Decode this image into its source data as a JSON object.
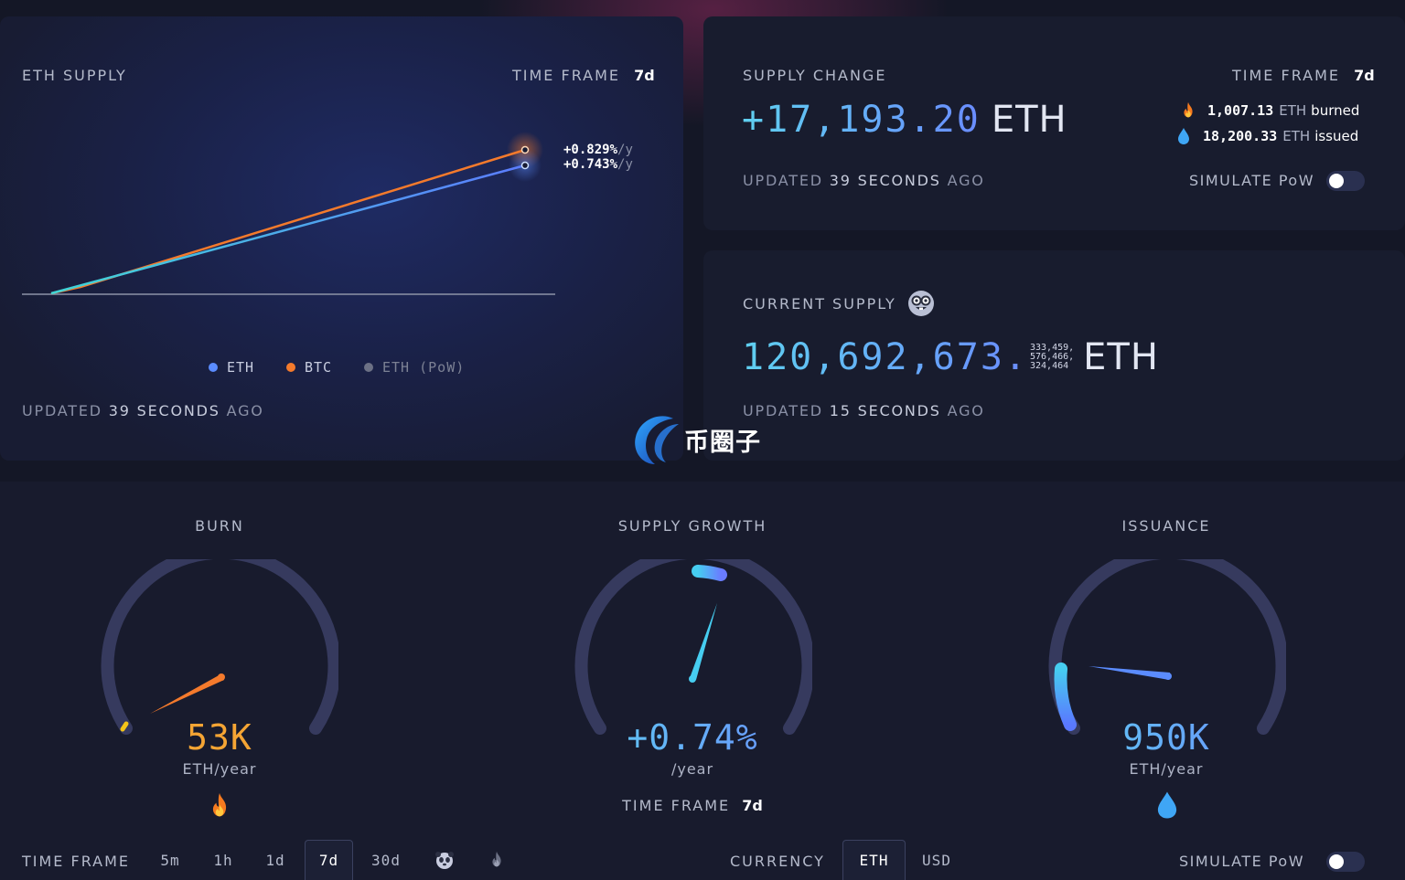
{
  "colors": {
    "eth": "#5b8cff",
    "btc": "#f47a2c",
    "eth_pow": "#7c8194",
    "accent_blue": "#6ba6ff",
    "burn_orange": "#f5a534"
  },
  "supply_card": {
    "title": "ETH SUPPLY",
    "time_frame_label": "TIME FRAME",
    "time_frame_value": "7d",
    "btc_rate": "+0.829%",
    "eth_rate": "+0.743%",
    "rate_unit": "/y",
    "updated_prefix": "UPDATED",
    "updated_value": "39 SECONDS",
    "updated_suffix": "AGO",
    "legend": [
      {
        "label": "ETH",
        "color": "#5b8cff"
      },
      {
        "label": "BTC",
        "color": "#f47a2c"
      },
      {
        "label": "ETH (PoW)",
        "color": "#6c7185"
      }
    ]
  },
  "chart_data": {
    "type": "line",
    "series": [
      {
        "name": "ETH",
        "start": 0,
        "end": 0.743
      },
      {
        "name": "BTC",
        "start": 0,
        "end": 0.829
      }
    ]
  },
  "change_card": {
    "title": "SUPPLY CHANGE",
    "time_frame_label": "TIME FRAME",
    "time_frame_value": "7d",
    "amount": "+17,193.20",
    "unit": "ETH",
    "burned_value": "1,007.13",
    "burned_unit": "ETH",
    "burned_label": "burned",
    "issued_value": "18,200.33",
    "issued_unit": "ETH",
    "issued_label": "issued",
    "updated_prefix": "UPDATED",
    "updated_value": "39 SECONDS",
    "updated_suffix": "AGO",
    "simulate_label": "SIMULATE PoW",
    "simulate_on": false
  },
  "current_card": {
    "title": "CURRENT SUPPLY",
    "integer": "120,692,673.",
    "decimals_line1": "333,459,",
    "decimals_line2": "576,466,",
    "decimals_line3": "324,464",
    "unit": "ETH",
    "updated_prefix": "UPDATED",
    "updated_value": "15 SECONDS",
    "updated_suffix": "AGO"
  },
  "watermark": {
    "text": "币圈子"
  },
  "gauges": {
    "burn": {
      "title": "BURN",
      "value": "53K",
      "unit": "ETH/year",
      "icon": "fire-icon"
    },
    "growth": {
      "title": "SUPPLY GROWTH",
      "value": "+0.74%",
      "unit": "/year",
      "time_frame_label": "TIME FRAME",
      "time_frame_value": "7d"
    },
    "issuance": {
      "title": "ISSUANCE",
      "value": "950K",
      "unit": "ETH/year",
      "icon": "droplet-icon"
    }
  },
  "footer": {
    "time_frame_label": "TIME FRAME",
    "time_frames": [
      "5m",
      "1h",
      "1d",
      "7d",
      "30d"
    ],
    "active_time_frame": "7d",
    "currency_label": "CURRENCY",
    "currencies": [
      "ETH",
      "USD"
    ],
    "active_currency": "ETH",
    "simulate_label": "SIMULATE PoW",
    "simulate_on": false
  }
}
